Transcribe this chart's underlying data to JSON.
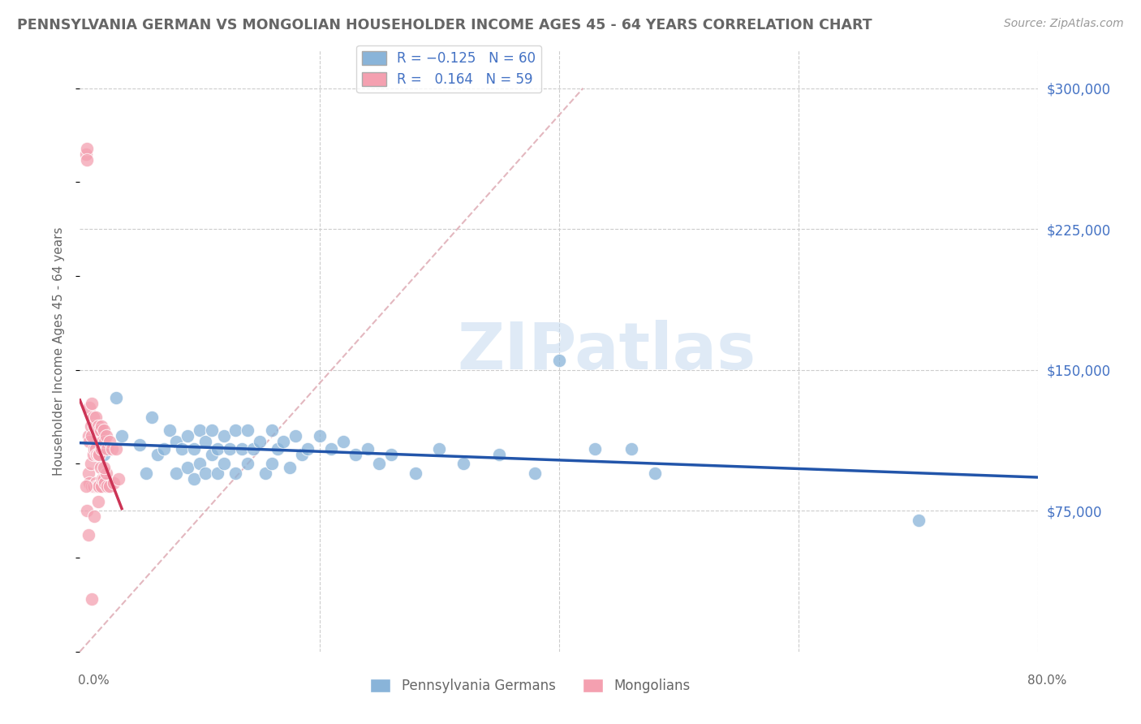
{
  "title": "PENNSYLVANIA GERMAN VS MONGOLIAN HOUSEHOLDER INCOME AGES 45 - 64 YEARS CORRELATION CHART",
  "source": "Source: ZipAtlas.com",
  "ylabel": "Householder Income Ages 45 - 64 years",
  "xlim": [
    0.0,
    0.8
  ],
  "ylim": [
    0,
    320000
  ],
  "yticks": [
    75000,
    150000,
    225000,
    300000
  ],
  "ytick_labels": [
    "$75,000",
    "$150,000",
    "$225,000",
    "$300,000"
  ],
  "background_color": "#ffffff",
  "watermark_text": "ZIPatlas",
  "legend_label1": "Pennsylvania Germans",
  "legend_label2": "Mongolians",
  "blue_scatter_color": "#89b4d9",
  "pink_scatter_color": "#f4a0b0",
  "blue_line_color": "#2255aa",
  "pink_line_color": "#cc3355",
  "diag_line_color": "#e0b0b8",
  "grid_color": "#cccccc",
  "title_color": "#666666",
  "source_color": "#999999",
  "axis_label_color": "#666666",
  "right_tick_color": "#4472c4",
  "bottom_label_color": "#666666",
  "pa_german_x": [
    0.02,
    0.03,
    0.035,
    0.05,
    0.055,
    0.06,
    0.065,
    0.07,
    0.075,
    0.08,
    0.08,
    0.085,
    0.09,
    0.09,
    0.095,
    0.095,
    0.1,
    0.1,
    0.105,
    0.105,
    0.11,
    0.11,
    0.115,
    0.115,
    0.12,
    0.12,
    0.125,
    0.13,
    0.13,
    0.135,
    0.14,
    0.14,
    0.145,
    0.15,
    0.155,
    0.16,
    0.16,
    0.165,
    0.17,
    0.175,
    0.18,
    0.185,
    0.19,
    0.2,
    0.21,
    0.22,
    0.23,
    0.24,
    0.25,
    0.26,
    0.28,
    0.3,
    0.32,
    0.35,
    0.38,
    0.4,
    0.43,
    0.46,
    0.48,
    0.7
  ],
  "pa_german_y": [
    105000,
    135000,
    115000,
    110000,
    95000,
    125000,
    105000,
    108000,
    118000,
    112000,
    95000,
    108000,
    115000,
    98000,
    108000,
    92000,
    118000,
    100000,
    112000,
    95000,
    118000,
    105000,
    108000,
    95000,
    115000,
    100000,
    108000,
    118000,
    95000,
    108000,
    118000,
    100000,
    108000,
    112000,
    95000,
    118000,
    100000,
    108000,
    112000,
    98000,
    115000,
    105000,
    108000,
    115000,
    108000,
    112000,
    105000,
    108000,
    100000,
    105000,
    95000,
    108000,
    100000,
    105000,
    95000,
    155000,
    108000,
    108000,
    95000,
    70000
  ],
  "mongolian_x": [
    0.005,
    0.006,
    0.006,
    0.007,
    0.007,
    0.008,
    0.008,
    0.008,
    0.009,
    0.009,
    0.01,
    0.01,
    0.01,
    0.011,
    0.011,
    0.011,
    0.012,
    0.012,
    0.012,
    0.013,
    0.013,
    0.013,
    0.014,
    0.014,
    0.014,
    0.015,
    0.015,
    0.015,
    0.016,
    0.016,
    0.016,
    0.017,
    0.017,
    0.018,
    0.018,
    0.018,
    0.019,
    0.019,
    0.02,
    0.02,
    0.021,
    0.021,
    0.022,
    0.022,
    0.023,
    0.023,
    0.025,
    0.025,
    0.027,
    0.028,
    0.03,
    0.032,
    0.005,
    0.006,
    0.007,
    0.02,
    0.015,
    0.012,
    0.01
  ],
  "mongolian_y": [
    265000,
    268000,
    262000,
    115000,
    95000,
    130000,
    112000,
    90000,
    120000,
    100000,
    132000,
    115000,
    88000,
    125000,
    105000,
    88000,
    120000,
    108000,
    88000,
    125000,
    108000,
    90000,
    118000,
    105000,
    88000,
    120000,
    105000,
    88000,
    118000,
    105000,
    88000,
    118000,
    98000,
    120000,
    108000,
    88000,
    112000,
    92000,
    118000,
    92000,
    112000,
    90000,
    115000,
    95000,
    108000,
    88000,
    112000,
    88000,
    108000,
    90000,
    108000,
    92000,
    88000,
    75000,
    62000,
    98000,
    80000,
    72000,
    28000
  ]
}
